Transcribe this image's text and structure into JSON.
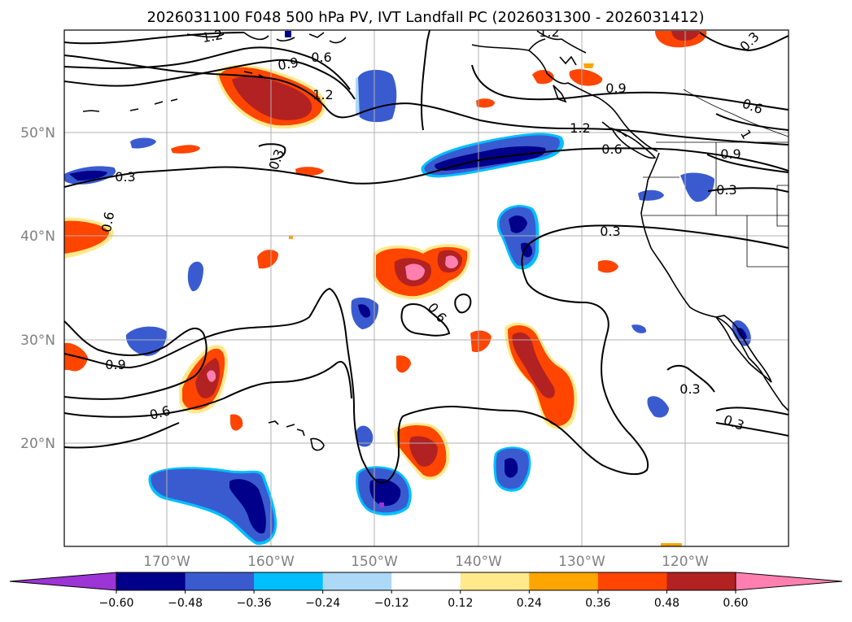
{
  "title": "2026031100 F048 500 hPa PV, IVT Landfall PC (2026031300 - 2026031412)",
  "lat_ticks": [
    "50°N",
    "40°N",
    "30°N",
    "20°N"
  ],
  "lon_ticks": [
    "170°W",
    "160°W",
    "150°W",
    "140°W",
    "130°W",
    "120°W"
  ],
  "colorbar": {
    "colors": [
      "#9c34d6",
      "#00008b",
      "#3a5bd0",
      "#00bfff",
      "#add8f6",
      "#ffffff",
      "#ffe98a",
      "#ffa500",
      "#ff4500",
      "#b22222",
      "#ff80b0"
    ],
    "labels": [
      "−0.60",
      "−0.48",
      "−0.36",
      "−0.24",
      "−0.12",
      "0.12",
      "0.24",
      "0.36",
      "0.48",
      "0.60"
    ]
  },
  "contour_labels": {
    "c1": "1.2",
    "c2": "1.2",
    "c3": "0.9",
    "c4": "0.6",
    "c5": "0.9",
    "c6": "1.2",
    "c7": "1.2",
    "c8": "0.6",
    "c9": "0.3",
    "c10": "0.9",
    "c11": "0.6",
    "c12": "0.3",
    "c13": "0.3",
    "c14": "0.6",
    "c15": "0.3",
    "c16": "0.6",
    "c17": "0.9",
    "c18": "0.6",
    "c19": "0.3",
    "c20": "0.3",
    "c21": "0.3",
    "c22": "1"
  }
}
